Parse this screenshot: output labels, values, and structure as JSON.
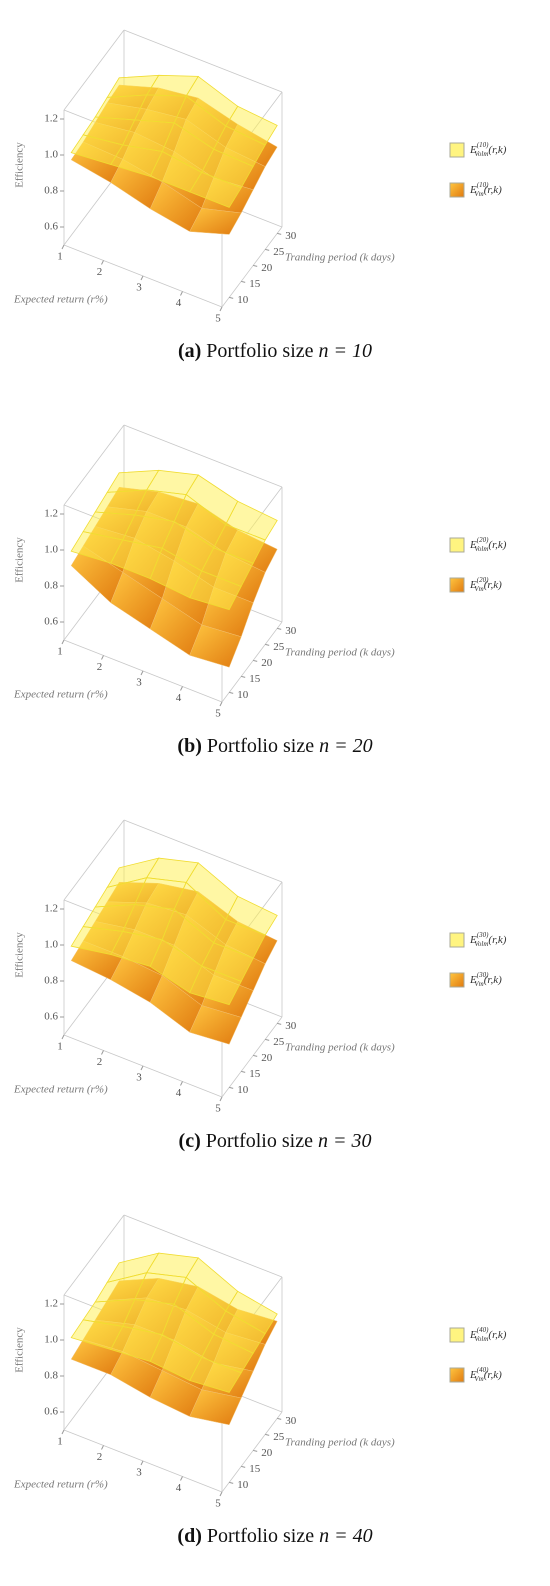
{
  "chart_data": [
    {
      "type": "surface",
      "xlabel": "Expected return (r%)",
      "ylabel": "Tranding period (k days)",
      "zlabel": "Efficiency",
      "x": [
        1,
        2,
        3,
        4,
        5
      ],
      "y": [
        10,
        15,
        20,
        25,
        30
      ],
      "xlim": [
        1,
        5
      ],
      "ylim": [
        7,
        32
      ],
      "zlim": [
        0.5,
        1.25
      ],
      "xticks": [
        1,
        2,
        3,
        4,
        5
      ],
      "yticks": [
        10,
        15,
        20,
        25,
        30
      ],
      "zticks": [
        0.6,
        0.8,
        {
          "value": 1,
          "label": "1.0"
        },
        1.2
      ],
      "series": [
        {
          "name": "E",
          "superscript": "(10)",
          "subscript": "Vm",
          "suffix": "(r,k)",
          "color": "#f5a020",
          "values": [
            [
              0.92,
              0.93,
              0.95,
              0.97,
              0.98
            ],
            [
              0.88,
              0.92,
              0.98,
              1.02,
              1.05
            ],
            [
              0.82,
              0.88,
              0.96,
              1.05,
              1.08
            ],
            [
              0.78,
              0.82,
              0.9,
              0.98,
              1.02
            ],
            [
              0.85,
              0.88,
              0.92,
              0.96,
              0.98
            ]
          ]
        },
        {
          "name": "E",
          "superscript": "(10)",
          "subscript": "Volm",
          "suffix": "(r,k)",
          "color": "#fff04a",
          "values": [
            [
              0.96,
              0.97,
              0.98,
              1.0,
              1.02
            ],
            [
              0.98,
              1.0,
              1.05,
              1.1,
              1.12
            ],
            [
              1.0,
              1.05,
              1.12,
              1.18,
              1.2
            ],
            [
              1.0,
              1.02,
              1.06,
              1.1,
              1.12
            ],
            [
              1.0,
              1.02,
              1.05,
              1.08,
              1.1
            ]
          ]
        }
      ],
      "caption": {
        "label": "(a)",
        "text": "Portfolio size",
        "math": "n = 10"
      }
    },
    {
      "type": "surface",
      "xlabel": "Expected return (r%)",
      "ylabel": "Tranding period (k days)",
      "zlabel": "Efficiency",
      "x": [
        1,
        2,
        3,
        4,
        5
      ],
      "y": [
        10,
        15,
        20,
        25,
        30
      ],
      "xlim": [
        1,
        5
      ],
      "ylim": [
        7,
        32
      ],
      "zlim": [
        0.5,
        1.25
      ],
      "xticks": [
        1,
        2,
        3,
        4,
        5
      ],
      "yticks": [
        10,
        15,
        20,
        25,
        30
      ],
      "zticks": [
        0.6,
        0.8,
        {
          "value": 1,
          "label": "1.0"
        },
        1.2
      ],
      "series": [
        {
          "name": "E",
          "superscript": "(20)",
          "subscript": "Vm",
          "suffix": "(r,k)",
          "color": "#f5a020",
          "values": [
            [
              0.86,
              0.88,
              0.9,
              0.92,
              0.94
            ],
            [
              0.74,
              0.82,
              0.92,
              0.98,
              1.0
            ],
            [
              0.68,
              0.76,
              0.88,
              0.98,
              1.02
            ],
            [
              0.62,
              0.7,
              0.82,
              0.92,
              0.96
            ],
            [
              0.64,
              0.72,
              0.82,
              0.9,
              0.94
            ]
          ]
        },
        {
          "name": "E",
          "superscript": "(20)",
          "subscript": "Volm",
          "suffix": "(r,k)",
          "color": "#fff04a",
          "values": [
            [
              0.94,
              0.96,
              0.98,
              1.0,
              1.02
            ],
            [
              0.96,
              1.0,
              1.05,
              1.1,
              1.12
            ],
            [
              0.96,
              1.04,
              1.1,
              1.16,
              1.18
            ],
            [
              0.94,
              1.0,
              1.04,
              1.08,
              1.12
            ],
            [
              0.96,
              1.0,
              1.04,
              1.08,
              1.1
            ]
          ]
        }
      ],
      "caption": {
        "label": "(b)",
        "text": "Portfolio size",
        "math": "n = 20"
      }
    },
    {
      "type": "surface",
      "xlabel": "Expected return (r%)",
      "ylabel": "Tranding period (k days)",
      "zlabel": "Efficiency",
      "x": [
        1,
        2,
        3,
        4,
        5
      ],
      "y": [
        10,
        15,
        20,
        25,
        30
      ],
      "xlim": [
        1,
        5
      ],
      "ylim": [
        7,
        32
      ],
      "zlim": [
        0.5,
        1.25
      ],
      "xticks": [
        1,
        2,
        3,
        4,
        5
      ],
      "yticks": [
        10,
        15,
        20,
        25,
        30
      ],
      "zticks": [
        0.6,
        0.8,
        {
          "value": 1,
          "label": "1.0"
        },
        1.2
      ],
      "series": [
        {
          "name": "E",
          "superscript": "(30)",
          "subscript": "Vm",
          "suffix": "(r,k)",
          "color": "#f5a020",
          "values": [
            [
              0.86,
              0.88,
              0.9,
              0.92,
              0.94
            ],
            [
              0.84,
              0.88,
              0.94,
              1.0,
              1.02
            ],
            [
              0.8,
              0.86,
              0.94,
              1.02,
              1.06
            ],
            [
              0.72,
              0.78,
              0.86,
              0.94,
              0.98
            ],
            [
              0.74,
              0.8,
              0.86,
              0.92,
              0.96
            ]
          ]
        },
        {
          "name": "E",
          "superscript": "(30)",
          "subscript": "Volm",
          "suffix": "(r,k)",
          "color": "#fff04a",
          "values": [
            [
              0.94,
              0.96,
              0.98,
              1.0,
              1.02
            ],
            [
              0.98,
              1.02,
              1.08,
              1.14,
              1.16
            ],
            [
              1.0,
              1.06,
              1.14,
              1.2,
              1.22
            ],
            [
              0.94,
              1.0,
              1.04,
              1.08,
              1.12
            ],
            [
              0.96,
              1.0,
              1.04,
              1.08,
              1.1
            ]
          ]
        }
      ],
      "caption": {
        "label": "(c)",
        "text": "Portfolio size",
        "math": "n = 30"
      }
    },
    {
      "type": "surface",
      "xlabel": "Expected return (r%)",
      "ylabel": "Tranding period (k days)",
      "zlabel": "Efficiency",
      "x": [
        1,
        2,
        3,
        4,
        5
      ],
      "y": [
        10,
        15,
        20,
        25,
        30
      ],
      "xlim": [
        1,
        5
      ],
      "ylim": [
        7,
        32
      ],
      "zlim": [
        0.5,
        1.25
      ],
      "xticks": [
        1,
        2,
        3,
        4,
        5
      ],
      "yticks": [
        10,
        15,
        20,
        25,
        30
      ],
      "zticks": [
        0.6,
        0.8,
        {
          "value": 1,
          "label": "1.0"
        },
        1.2
      ],
      "series": [
        {
          "name": "E",
          "superscript": "(40)",
          "subscript": "Vm",
          "suffix": "(r,k)",
          "color": "#f5a020",
          "values": [
            [
              0.84,
              0.86,
              0.88,
              0.9,
              0.92
            ],
            [
              0.84,
              0.88,
              0.94,
              1.0,
              1.02
            ],
            [
              0.8,
              0.86,
              0.94,
              1.02,
              1.06
            ],
            [
              0.78,
              0.84,
              0.9,
              0.98,
              1.02
            ],
            [
              0.82,
              0.88,
              0.94,
              1.0,
              1.04
            ]
          ]
        },
        {
          "name": "E",
          "superscript": "(40)",
          "subscript": "Volm",
          "suffix": "(r,k)",
          "color": "#fff04a",
          "values": [
            [
              0.96,
              0.97,
              0.98,
              1.0,
              1.02
            ],
            [
              0.98,
              1.02,
              1.08,
              1.14,
              1.16
            ],
            [
              1.0,
              1.06,
              1.14,
              1.2,
              1.22
            ],
            [
              0.98,
              1.02,
              1.06,
              1.1,
              1.12
            ],
            [
              1.0,
              1.02,
              1.04,
              1.06,
              1.08
            ]
          ]
        }
      ],
      "caption": {
        "label": "(d)",
        "text": "Portfolio size",
        "math": "n = 40"
      }
    }
  ]
}
